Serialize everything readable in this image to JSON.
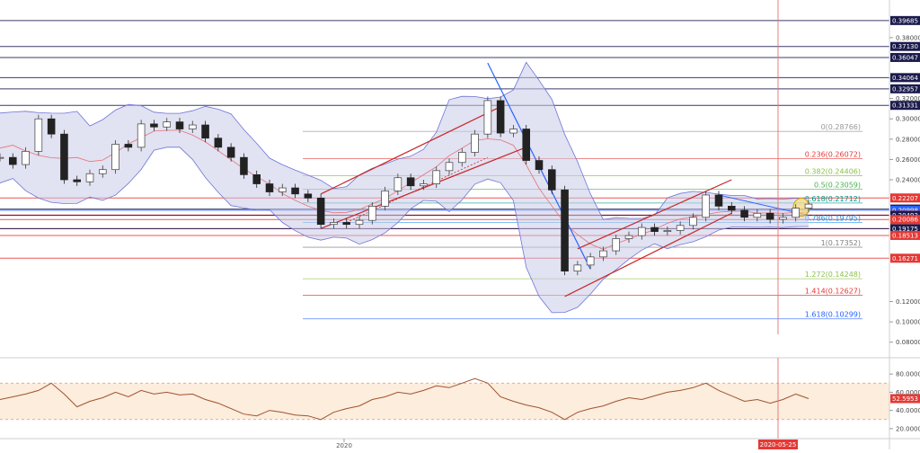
{
  "chart_data": {
    "type": "line",
    "title": "",
    "price_ylim": [
      0.07,
      0.41
    ],
    "price_axis_ticks": [
      "0.38000",
      "0.34000",
      "0.32000",
      "0.30000",
      "0.28000",
      "0.26000",
      "0.24000",
      "0.12000",
      "0.10000",
      "0.08000"
    ],
    "price_axis_tick_values": [
      0.38,
      0.34,
      0.32,
      0.3,
      0.28,
      0.26,
      0.24,
      0.12,
      0.1,
      0.08
    ],
    "x_ticks": [
      "2020"
    ],
    "crosshair_date": "2020-05-25",
    "horizontal_levels": [
      {
        "label": "0.39685",
        "value": 0.39685,
        "color": "#1b1b4d"
      },
      {
        "label": "0.37130",
        "value": 0.3713,
        "color": "#1b1b4d"
      },
      {
        "label": "0.36047",
        "value": 0.36047,
        "color": "#1b1b4d"
      },
      {
        "label": "0.34064",
        "value": 0.34064,
        "color": "#1b1b4d"
      },
      {
        "label": "0.32957",
        "value": 0.32957,
        "color": "#1b1b4d"
      },
      {
        "label": "0.31331",
        "value": 0.31331,
        "color": "#1b1b4d"
      },
      {
        "label": "0.22207",
        "value": 0.22207,
        "color": "#e53935"
      },
      {
        "label": "0.21114",
        "value": 0.21114,
        "color": "#1b1b4d"
      },
      {
        "label": "0.20998",
        "value": 0.20998,
        "color": "#2962ff"
      },
      {
        "label": "0.20522",
        "value": 0.20522,
        "color": "#e53935"
      },
      {
        "label": "0.20493",
        "value": 0.20493,
        "color": "#1b1b4d"
      },
      {
        "label": "0.20086",
        "value": 0.20086,
        "color": "#e53935"
      },
      {
        "label": "0.19201",
        "value": 0.19201,
        "color": "#e53935"
      },
      {
        "label": "0.19175",
        "value": 0.19175,
        "color": "#1b1b4d"
      },
      {
        "label": "0.18513",
        "value": 0.18513,
        "color": "#e53935"
      },
      {
        "label": "0.16271",
        "value": 0.16271,
        "color": "#e53935"
      }
    ],
    "fibonacci": [
      {
        "label": "0(0.28766)",
        "value": 0.28766,
        "color": "#999999"
      },
      {
        "label": "0.236(0.26072)",
        "value": 0.26072,
        "color": "#e53935"
      },
      {
        "label": "0.382(0.24406)",
        "value": 0.24406,
        "color": "#8bc34a"
      },
      {
        "label": "0.5(0.23059)",
        "value": 0.23059,
        "color": "#4caf50"
      },
      {
        "label": "0.618(0.21712)",
        "value": 0.21712,
        "color": "#009688"
      },
      {
        "label": "0.786(0.19795)",
        "value": 0.19795,
        "color": "#2196f3"
      },
      {
        "label": "1(0.17352)",
        "value": 0.17352,
        "color": "#808080"
      },
      {
        "label": "1.272(0.14248)",
        "value": 0.14248,
        "color": "#8bc34a"
      },
      {
        "label": "1.414(0.12627)",
        "value": 0.12627,
        "color": "#e53935"
      },
      {
        "label": "1.618(0.10299)",
        "value": 0.10299,
        "color": "#2962ff"
      }
    ],
    "close_series": [
      0.262,
      0.255,
      0.268,
      0.3,
      0.285,
      0.24,
      0.238,
      0.246,
      0.25,
      0.275,
      0.272,
      0.295,
      0.292,
      0.297,
      0.29,
      0.294,
      0.281,
      0.272,
      0.262,
      0.245,
      0.236,
      0.228,
      0.232,
      0.226,
      0.222,
      0.196,
      0.198,
      0.196,
      0.2,
      0.214,
      0.229,
      0.242,
      0.234,
      0.236,
      0.249,
      0.257,
      0.267,
      0.285,
      0.318,
      0.286,
      0.29,
      0.259,
      0.25,
      0.23,
      0.15,
      0.156,
      0.164,
      0.17,
      0.182,
      0.185,
      0.193,
      0.189,
      0.19,
      0.195,
      0.203,
      0.225,
      0.214,
      0.21,
      0.203,
      0.207,
      0.201,
      0.203,
      0.212,
      0.216
    ],
    "rsi": {
      "ticks": [
        "80.0000",
        "60.0000",
        "40.0000",
        "20.0000"
      ],
      "tick_values": [
        80,
        60,
        40,
        20
      ],
      "ylim": [
        12,
        92
      ],
      "band": [
        30,
        70
      ],
      "current_label": "52.5953",
      "values": [
        52,
        55,
        58,
        62,
        70,
        58,
        44,
        50,
        54,
        60,
        55,
        62,
        58,
        60,
        57,
        58,
        52,
        48,
        42,
        36,
        34,
        40,
        38,
        35,
        34,
        30,
        38,
        42,
        45,
        52,
        55,
        60,
        58,
        62,
        67,
        65,
        70,
        75,
        70,
        55,
        50,
        46,
        43,
        38,
        30,
        38,
        42,
        45,
        50,
        54,
        52,
        56,
        60,
        62,
        65,
        70,
        62,
        56,
        50,
        52,
        48,
        52,
        58,
        53
      ]
    }
  }
}
